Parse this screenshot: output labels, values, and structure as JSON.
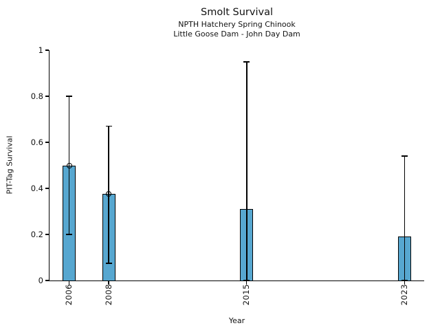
{
  "chart_data": {
    "type": "bar",
    "title": "Smolt Survival",
    "subtitle_lines": [
      "NPTH Hatchery Spring Chinook",
      "Little Goose Dam - John Day Dam"
    ],
    "xlabel": "Year",
    "ylabel": "PIT-Tag Survival",
    "categories": [
      2006,
      2008,
      2015,
      2023
    ],
    "series": [
      {
        "name": "PIT-Tag Survival",
        "values": [
          0.5,
          0.375,
          0.31,
          0.19
        ],
        "error_low": [
          0.2,
          0.075,
          0.0,
          0.0
        ],
        "error_high": [
          0.8,
          0.67,
          0.95,
          0.54
        ],
        "point_marker_at_top": [
          true,
          true,
          false,
          false
        ]
      }
    ],
    "xtick_labels": [
      "2006",
      "2008",
      "2015",
      "2023"
    ],
    "ytick_values": [
      0,
      0.2,
      0.4,
      0.6,
      0.8,
      1
    ],
    "ytick_labels": [
      "0",
      "0.2",
      "0.4",
      "0.6",
      "0.8",
      "1"
    ],
    "xlim": [
      2005,
      2024
    ],
    "ylim": [
      0,
      1
    ],
    "grid": false,
    "legend_position": "none",
    "bar_color": "#57a7d0",
    "bar_edge_color": "#000000",
    "errorbar_color": "#000000",
    "background_color": "#ffffff"
  }
}
